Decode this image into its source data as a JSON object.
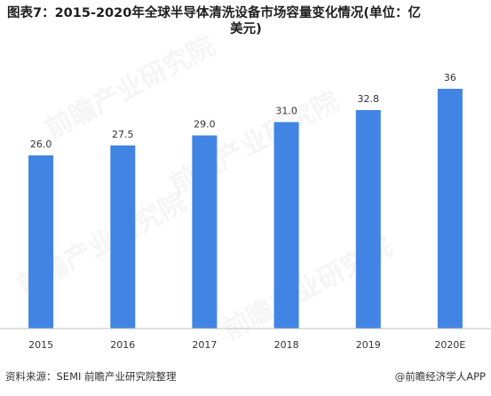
{
  "title_line1": "图表7：2015-2020年全球半导体清洗设备市场容量变化情况(单位：亿",
  "title_line2": "美元)",
  "watermark_text": "前瞻产业研究院",
  "colors": {
    "bar": "#4184e4",
    "axis": "#bfbfbf",
    "label": "#333333"
  },
  "chart_data": {
    "type": "bar",
    "categories": [
      "2015",
      "2016",
      "2017",
      "2018",
      "2019",
      "2020E"
    ],
    "values": [
      26.0,
      27.5,
      29.0,
      31.0,
      32.8,
      36
    ],
    "value_labels": [
      "26.0",
      "27.5",
      "29.0",
      "31.0",
      "32.8",
      "36"
    ],
    "title": "图表7：2015-2020年全球半导体清洗设备市场容量变化情况(单位：亿美元)",
    "xlabel": "",
    "ylabel": "",
    "ylim": [
      0,
      40
    ],
    "grid": false,
    "legend": "none"
  },
  "footer": {
    "source": "资料来源：SEMI 前瞻产业研究院整理",
    "brand": "@前瞻经济学人APP"
  }
}
